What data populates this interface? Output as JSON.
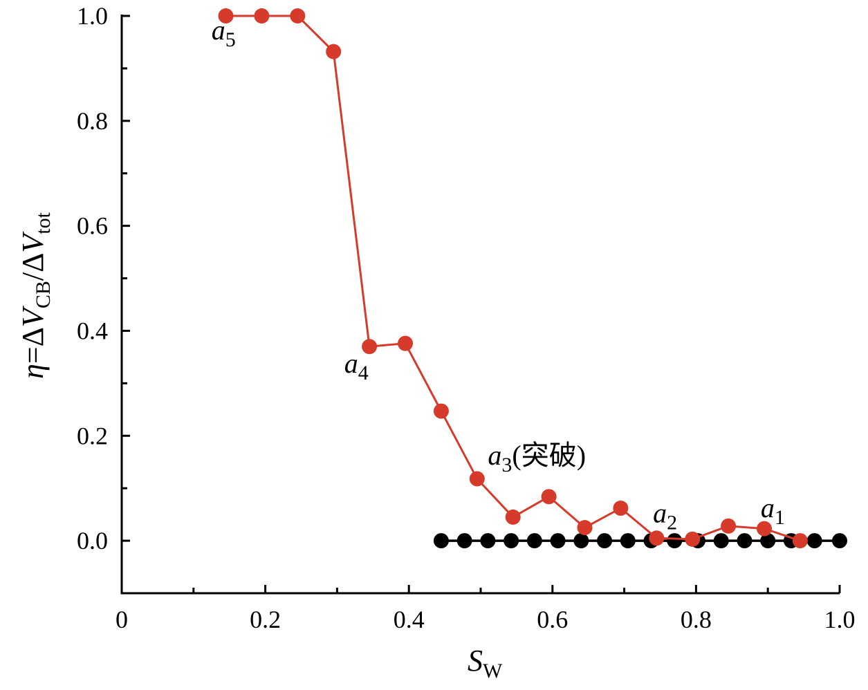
{
  "chart_data": {
    "type": "line",
    "title": "",
    "xlabel": {
      "main": "S",
      "sub": "W"
    },
    "ylabel": {
      "eta": "η",
      "eq": "=Δ",
      "V1": "V",
      "sub1": "CB",
      "slash": "/Δ",
      "V2": "V",
      "sub2": "tot"
    },
    "xlim": [
      0,
      1.0
    ],
    "ylim": [
      -0.1,
      1.0
    ],
    "x_ticks": [
      "0",
      "0.2",
      "0.4",
      "0.6",
      "0.8",
      "1.0"
    ],
    "x_tick_values": [
      0,
      0.2,
      0.4,
      0.6,
      0.8,
      1.0
    ],
    "y_ticks": [
      "0.0",
      "0.2",
      "0.4",
      "0.6",
      "0.8",
      "1.0"
    ],
    "y_tick_values": [
      0,
      0.2,
      0.4,
      0.6,
      0.8,
      1.0
    ],
    "grid": false,
    "series": [
      {
        "color": "#d63a2a",
        "x": [
          0.145,
          0.195,
          0.245,
          0.295,
          0.345,
          0.395,
          0.445,
          0.495,
          0.545,
          0.595,
          0.645,
          0.695,
          0.745,
          0.795,
          0.845,
          0.895,
          0.945
        ],
        "y": [
          1.0,
          1.0,
          1.0,
          0.932,
          0.37,
          0.376,
          0.247,
          0.118,
          0.045,
          0.084,
          0.025,
          0.062,
          0.005,
          0.003,
          0.028,
          0.023,
          0.0
        ]
      },
      {
        "color": "#000000",
        "x": [
          0.445,
          0.4775,
          0.51,
          0.5425,
          0.575,
          0.6075,
          0.64,
          0.6725,
          0.705,
          0.7375,
          0.77,
          0.8025,
          0.835,
          0.8675,
          0.9,
          0.9325,
          0.965,
          1.0
        ],
        "y": [
          0,
          0,
          0,
          0,
          0,
          0,
          0,
          0,
          0,
          0,
          0,
          0,
          0,
          0,
          0,
          0,
          0,
          0
        ]
      }
    ],
    "annotations": [
      {
        "id": "a5",
        "letter": "a",
        "sub": "5",
        "suffix": "",
        "x": 0.125,
        "y": 0.955
      },
      {
        "id": "a4",
        "letter": "a",
        "sub": "4",
        "suffix": "",
        "x": 0.31,
        "y": 0.32
      },
      {
        "id": "a3",
        "letter": "a",
        "sub": "3",
        "suffix": "(突破)",
        "x": 0.51,
        "y": 0.145
      },
      {
        "id": "a2",
        "letter": "a",
        "sub": "2",
        "suffix": "",
        "x": 0.74,
        "y": 0.035
      },
      {
        "id": "a1",
        "letter": "a",
        "sub": "1",
        "suffix": "",
        "x": 0.89,
        "y": 0.045
      }
    ]
  }
}
